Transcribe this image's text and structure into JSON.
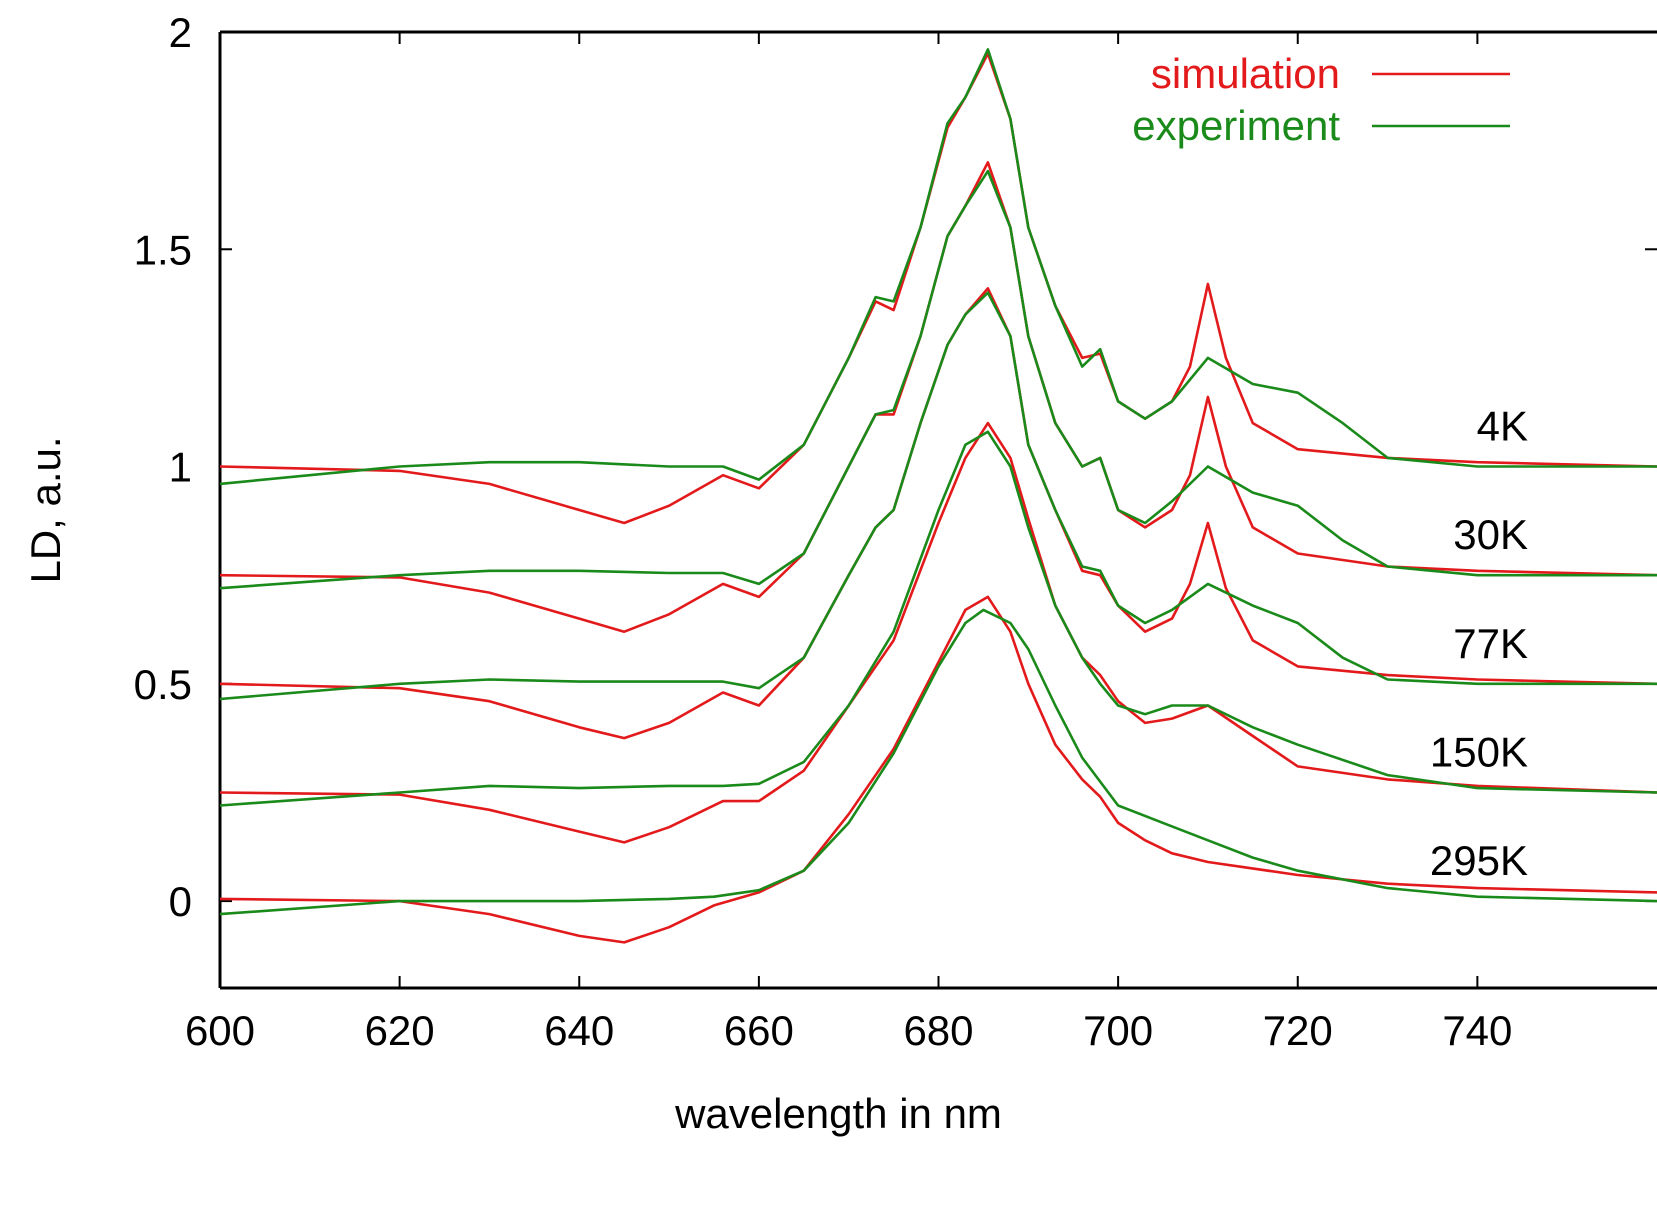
{
  "chart_data": {
    "type": "line",
    "title": "",
    "xlabel": "wavelength in nm",
    "ylabel": "LD, a.u.",
    "xlim": [
      600,
      760
    ],
    "ylim": [
      -0.2,
      2.0
    ],
    "x_ticks": [
      600,
      620,
      640,
      660,
      680,
      700,
      720,
      740
    ],
    "x_tick_labels": [
      "600",
      "620",
      "640",
      "660",
      "680",
      "700",
      "720",
      "740"
    ],
    "y_ticks": [
      0,
      0.5,
      1,
      1.5,
      2
    ],
    "y_tick_labels": [
      "0",
      "0.5",
      "1",
      "1.5",
      "2"
    ],
    "grid": false,
    "legend_position": "top-right",
    "legend": [
      {
        "name": "simulation",
        "color": "#e31a1c"
      },
      {
        "name": "experiment",
        "color": "#1a8a1a"
      }
    ],
    "curve_labels": [
      {
        "text": "4K",
        "offset": 1.0
      },
      {
        "text": "30K",
        "offset": 0.75
      },
      {
        "text": "77K",
        "offset": 0.5
      },
      {
        "text": "150K",
        "offset": 0.25
      },
      {
        "text": "295K",
        "offset": 0.0
      }
    ],
    "series": [
      {
        "name": "simulation",
        "label": "4K",
        "x": [
          600,
          620,
          630,
          640,
          645,
          650,
          656,
          660,
          665,
          670,
          673,
          675,
          678,
          681,
          683,
          685.5,
          688,
          690,
          693,
          696,
          698,
          700,
          703,
          706,
          708,
          710,
          712,
          715,
          720,
          730,
          740,
          760
        ],
        "y": [
          1.0,
          0.99,
          0.96,
          0.9,
          0.87,
          0.91,
          0.98,
          0.95,
          1.05,
          1.25,
          1.38,
          1.36,
          1.55,
          1.78,
          1.85,
          1.95,
          1.8,
          1.55,
          1.37,
          1.25,
          1.26,
          1.15,
          1.11,
          1.15,
          1.23,
          1.42,
          1.25,
          1.1,
          1.04,
          1.02,
          1.01,
          1.0
        ]
      },
      {
        "name": "experiment",
        "label": "4K",
        "x": [
          600,
          620,
          630,
          640,
          650,
          656,
          660,
          665,
          670,
          673,
          675,
          678,
          681,
          683,
          685.5,
          688,
          690,
          693,
          696,
          698,
          700,
          703,
          706,
          710,
          715,
          720,
          725,
          730,
          740,
          760
        ],
        "y": [
          0.96,
          1.0,
          1.01,
          1.01,
          1.0,
          1.0,
          0.97,
          1.05,
          1.25,
          1.39,
          1.38,
          1.55,
          1.79,
          1.85,
          1.96,
          1.8,
          1.55,
          1.37,
          1.23,
          1.27,
          1.15,
          1.11,
          1.15,
          1.25,
          1.19,
          1.17,
          1.1,
          1.02,
          1.0,
          1.0
        ]
      },
      {
        "name": "simulation",
        "label": "30K",
        "x": [
          600,
          620,
          630,
          640,
          645,
          650,
          656,
          660,
          665,
          670,
          673,
          675,
          678,
          681,
          683,
          685.5,
          688,
          690,
          693,
          696,
          698,
          700,
          703,
          706,
          708,
          710,
          712,
          715,
          720,
          730,
          740,
          760
        ],
        "y": [
          0.75,
          0.745,
          0.71,
          0.65,
          0.62,
          0.66,
          0.73,
          0.7,
          0.8,
          1.0,
          1.12,
          1.12,
          1.3,
          1.53,
          1.6,
          1.7,
          1.55,
          1.3,
          1.1,
          1.0,
          1.02,
          0.9,
          0.86,
          0.9,
          0.98,
          1.16,
          1.0,
          0.86,
          0.8,
          0.77,
          0.76,
          0.75
        ]
      },
      {
        "name": "experiment",
        "label": "30K",
        "x": [
          600,
          620,
          630,
          640,
          650,
          656,
          660,
          665,
          670,
          673,
          675,
          678,
          681,
          683,
          685.5,
          688,
          690,
          693,
          696,
          698,
          700,
          703,
          706,
          710,
          715,
          720,
          725,
          730,
          740,
          760
        ],
        "y": [
          0.72,
          0.75,
          0.76,
          0.76,
          0.755,
          0.755,
          0.73,
          0.8,
          1.0,
          1.12,
          1.13,
          1.3,
          1.53,
          1.6,
          1.68,
          1.55,
          1.3,
          1.1,
          1.0,
          1.02,
          0.9,
          0.87,
          0.92,
          1.0,
          0.94,
          0.91,
          0.83,
          0.77,
          0.75,
          0.75
        ]
      },
      {
        "name": "simulation",
        "label": "77K",
        "x": [
          600,
          620,
          630,
          640,
          645,
          650,
          656,
          660,
          665,
          670,
          673,
          675,
          678,
          681,
          683,
          685.5,
          688,
          690,
          693,
          696,
          698,
          700,
          703,
          706,
          708,
          710,
          712,
          715,
          720,
          730,
          740,
          760
        ],
        "y": [
          0.5,
          0.49,
          0.46,
          0.4,
          0.375,
          0.41,
          0.48,
          0.45,
          0.56,
          0.75,
          0.86,
          0.9,
          1.1,
          1.28,
          1.35,
          1.41,
          1.3,
          1.05,
          0.9,
          0.76,
          0.75,
          0.68,
          0.62,
          0.65,
          0.73,
          0.87,
          0.72,
          0.6,
          0.54,
          0.52,
          0.51,
          0.5
        ]
      },
      {
        "name": "experiment",
        "label": "77K",
        "x": [
          600,
          620,
          630,
          640,
          650,
          656,
          660,
          665,
          670,
          673,
          675,
          678,
          681,
          683,
          685.5,
          688,
          690,
          693,
          696,
          698,
          700,
          703,
          706,
          710,
          715,
          720,
          725,
          730,
          740,
          760
        ],
        "y": [
          0.465,
          0.5,
          0.51,
          0.505,
          0.505,
          0.505,
          0.49,
          0.56,
          0.75,
          0.86,
          0.9,
          1.1,
          1.28,
          1.35,
          1.4,
          1.3,
          1.05,
          0.9,
          0.77,
          0.76,
          0.68,
          0.64,
          0.67,
          0.73,
          0.68,
          0.64,
          0.56,
          0.51,
          0.5,
          0.5
        ]
      },
      {
        "name": "simulation",
        "label": "150K",
        "x": [
          600,
          620,
          630,
          640,
          645,
          650,
          656,
          660,
          665,
          670,
          675,
          680,
          683,
          685.5,
          688,
          690,
          693,
          696,
          698,
          700,
          703,
          706,
          710,
          715,
          720,
          730,
          740,
          760
        ],
        "y": [
          0.25,
          0.245,
          0.21,
          0.16,
          0.135,
          0.17,
          0.23,
          0.23,
          0.3,
          0.45,
          0.6,
          0.87,
          1.02,
          1.1,
          1.02,
          0.88,
          0.68,
          0.56,
          0.52,
          0.46,
          0.41,
          0.42,
          0.45,
          0.38,
          0.31,
          0.28,
          0.265,
          0.25
        ]
      },
      {
        "name": "experiment",
        "label": "150K",
        "x": [
          600,
          620,
          630,
          640,
          650,
          656,
          660,
          665,
          670,
          675,
          680,
          683,
          685.5,
          688,
          690,
          693,
          696,
          698,
          700,
          703,
          706,
          710,
          715,
          720,
          730,
          740,
          760
        ],
        "y": [
          0.22,
          0.25,
          0.265,
          0.26,
          0.265,
          0.265,
          0.27,
          0.32,
          0.45,
          0.62,
          0.9,
          1.05,
          1.08,
          1.0,
          0.86,
          0.68,
          0.56,
          0.5,
          0.45,
          0.43,
          0.45,
          0.45,
          0.4,
          0.36,
          0.29,
          0.26,
          0.25
        ]
      },
      {
        "name": "simulation",
        "label": "295K",
        "x": [
          600,
          620,
          630,
          640,
          645,
          650,
          655,
          660,
          665,
          670,
          675,
          680,
          683,
          685.5,
          688,
          690,
          693,
          696,
          698,
          700,
          703,
          706,
          710,
          720,
          730,
          740,
          760
        ],
        "y": [
          0.005,
          0.0,
          -0.03,
          -0.08,
          -0.095,
          -0.06,
          -0.01,
          0.02,
          0.07,
          0.2,
          0.35,
          0.55,
          0.67,
          0.7,
          0.62,
          0.5,
          0.36,
          0.28,
          0.24,
          0.18,
          0.14,
          0.11,
          0.09,
          0.06,
          0.04,
          0.03,
          0.02
        ]
      },
      {
        "name": "experiment",
        "label": "295K",
        "x": [
          600,
          620,
          630,
          640,
          650,
          655,
          660,
          665,
          670,
          675,
          680,
          683,
          685,
          688,
          690,
          693,
          696,
          700,
          705,
          710,
          715,
          720,
          730,
          740,
          760
        ],
        "y": [
          -0.03,
          0.0,
          0.0,
          0.0,
          0.005,
          0.01,
          0.025,
          0.07,
          0.18,
          0.34,
          0.54,
          0.64,
          0.67,
          0.64,
          0.58,
          0.45,
          0.33,
          0.22,
          0.18,
          0.14,
          0.1,
          0.07,
          0.03,
          0.01,
          0.0
        ]
      }
    ]
  }
}
